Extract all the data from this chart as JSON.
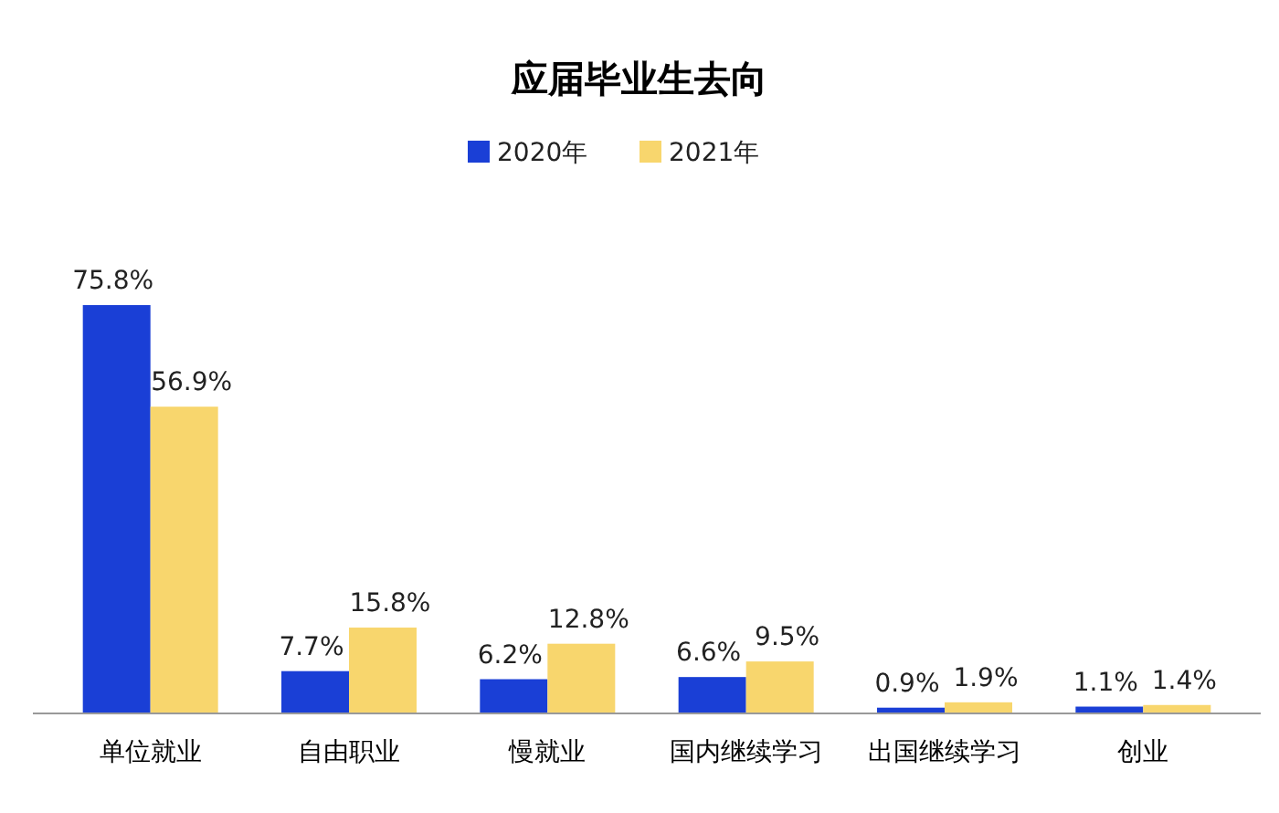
{
  "chart_data": {
    "type": "bar",
    "title": "应届毕业生去向",
    "categories": [
      "单位就业",
      "自由职业",
      "慢就业",
      "国内继续学习",
      "出国继续学习",
      "创业"
    ],
    "series": [
      {
        "name": "2020年",
        "color": "#1a3fd6",
        "values": [
          75.8,
          7.7,
          6.2,
          6.6,
          0.9,
          1.1
        ],
        "value_labels": [
          "75.8%",
          "7.7%",
          "6.2%",
          "6.6%",
          "0.9%",
          "1.1%"
        ]
      },
      {
        "name": "2021年",
        "color": "#f8d66d",
        "values": [
          56.9,
          15.8,
          12.8,
          9.5,
          1.9,
          1.4
        ],
        "value_labels": [
          "56.9%",
          "15.8%",
          "12.8%",
          "9.5%",
          "1.9%",
          "1.4%"
        ]
      }
    ],
    "legend": "top"
  }
}
